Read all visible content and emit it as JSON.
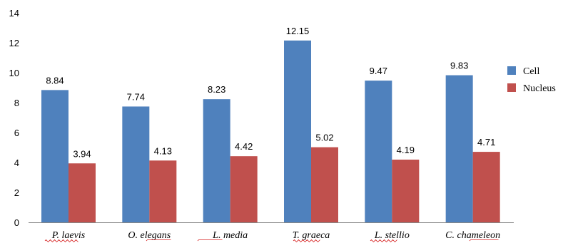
{
  "chart_data": {
    "type": "bar",
    "categories": [
      "P. laevis",
      "O. elegans",
      "L. media",
      "T. graeca",
      "L. stellio",
      "C. chameleon"
    ],
    "series": [
      {
        "name": "Cell",
        "values": [
          8.84,
          7.74,
          8.23,
          12.15,
          9.47,
          9.83
        ],
        "color": "#4f81bd"
      },
      {
        "name": "Nucleus",
        "values": [
          3.94,
          4.13,
          4.42,
          5.02,
          4.19,
          4.71
        ],
        "color": "#c0504d"
      }
    ],
    "data_labels": {
      "Cell": [
        "8.84",
        "7.74",
        "8.23",
        "12.15",
        "9.47",
        "9.83"
      ],
      "Nucleus": [
        "3.94",
        "4.13",
        "4.42",
        "5.02",
        "4.19",
        "4.71"
      ]
    },
    "yticks": [
      "0",
      "2",
      "4",
      "6",
      "8",
      "10",
      "12",
      "14"
    ],
    "ylim": [
      0,
      14
    ],
    "title": "",
    "xlabel": "",
    "ylabel": "",
    "grid": false,
    "legend_position": "right"
  }
}
